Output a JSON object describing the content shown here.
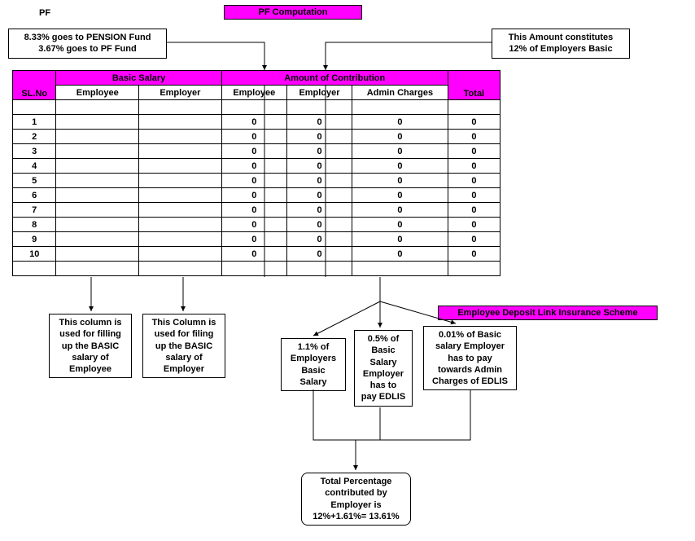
{
  "colors": {
    "magenta": "#ff00ff",
    "border": "#000000",
    "background": "#ffffff"
  },
  "labels": {
    "pf": "PF",
    "title": "PF Computation",
    "edlis_title": "Employee Deposit Link Insurance Scheme"
  },
  "callouts": {
    "pension_pf": "8.33% goes to PENSION Fund\n3.67% goes to PF Fund",
    "twelve_percent": "This Amount constitutes\n12% of Employers Basic",
    "col_employee": "This column is\nused for filling\nup the BASIC\nsalary of\nEmployee",
    "col_employer": "This Column is\nused for filing\nup the BASIC\nsalary of\nEmployer",
    "admin_1_1": "1.1% of\nEmployers\nBasic\nSalary",
    "admin_0_5": "0.5% of\nBasic\nSalary\nEmployer\nhas to\npay EDLIS",
    "admin_0_01": "0.01% of Basic\nsalary Employer\nhas to pay\ntowards Admin\nCharges of EDLIS",
    "total_percent": "Total Percentage\ncontributed by\nEmployer is\n12%+1.61%= 13.61%"
  },
  "table": {
    "group_headers": {
      "basic": "Basic Salary",
      "contrib": "Amount of Contribution"
    },
    "col_headers": {
      "slno": "SL.No",
      "emp_bs": "Employee",
      "emr_bs": "Employer",
      "emp_c": "Employee",
      "emr_c": "Employer",
      "admin": "Admin Charges",
      "total": "Total"
    },
    "rows": [
      {
        "slno": "1",
        "eb": "",
        "mb": "",
        "ec": "0",
        "mc": "0",
        "ac": "0",
        "t": "0"
      },
      {
        "slno": "2",
        "eb": "",
        "mb": "",
        "ec": "0",
        "mc": "0",
        "ac": "0",
        "t": "0"
      },
      {
        "slno": "3",
        "eb": "",
        "mb": "",
        "ec": "0",
        "mc": "0",
        "ac": "0",
        "t": "0"
      },
      {
        "slno": "4",
        "eb": "",
        "mb": "",
        "ec": "0",
        "mc": "0",
        "ac": "0",
        "t": "0"
      },
      {
        "slno": "5",
        "eb": "",
        "mb": "",
        "ec": "0",
        "mc": "0",
        "ac": "0",
        "t": "0"
      },
      {
        "slno": "6",
        "eb": "",
        "mb": "",
        "ec": "0",
        "mc": "0",
        "ac": "0",
        "t": "0"
      },
      {
        "slno": "7",
        "eb": "",
        "mb": "",
        "ec": "0",
        "mc": "0",
        "ac": "0",
        "t": "0"
      },
      {
        "slno": "8",
        "eb": "",
        "mb": "",
        "ec": "0",
        "mc": "0",
        "ac": "0",
        "t": "0"
      },
      {
        "slno": "9",
        "eb": "",
        "mb": "",
        "ec": "0",
        "mc": "0",
        "ac": "0",
        "t": "0"
      },
      {
        "slno": "10",
        "eb": "",
        "mb": "",
        "ec": "0",
        "mc": "0",
        "ac": "0",
        "t": "0"
      }
    ]
  }
}
